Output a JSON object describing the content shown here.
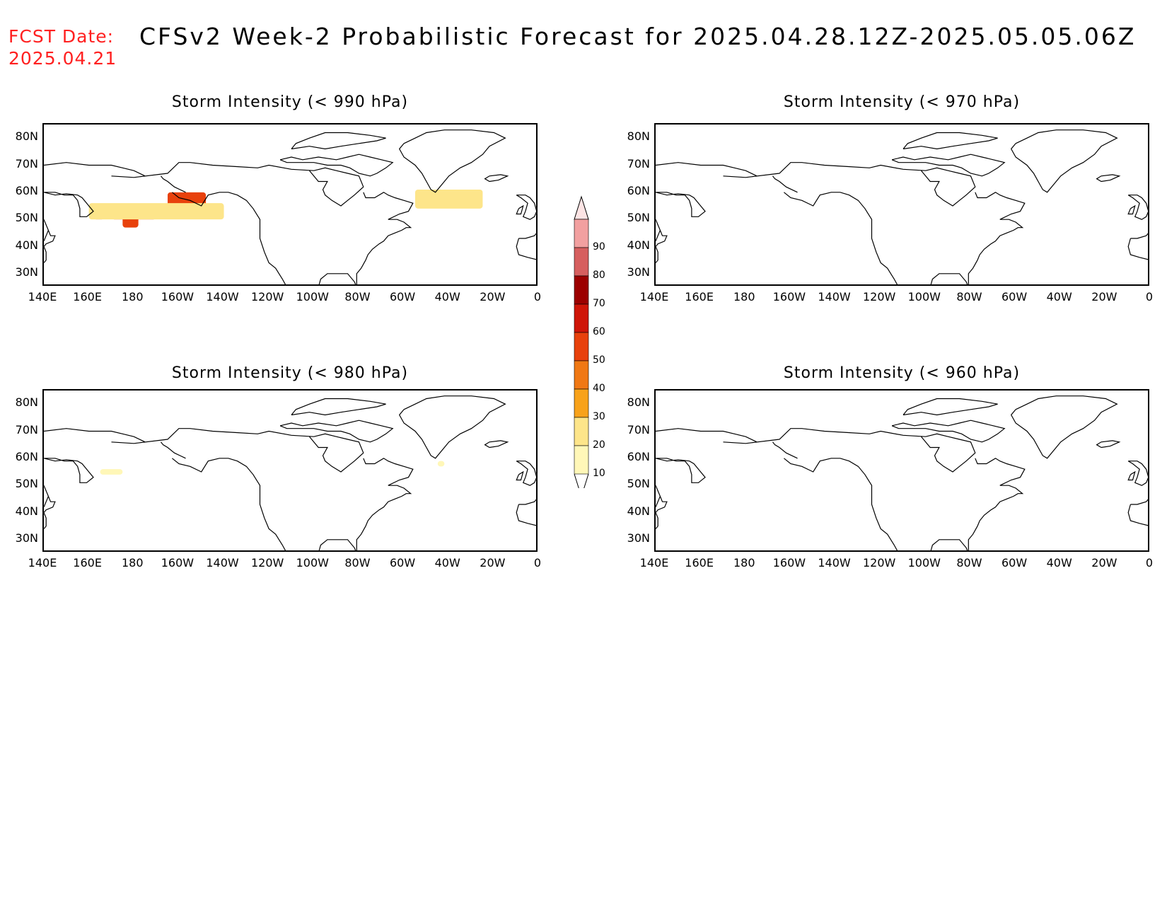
{
  "header": {
    "fcst_label": "FCST Date:",
    "fcst_date": "2025.04.21",
    "title": "CFSv2 Week-2 Probabilistic Forecast for 2025.04.28.12Z-2025.05.05.06Z",
    "label_color": "#ff2020"
  },
  "axes": {
    "lat_labels": [
      "80N",
      "70N",
      "60N",
      "50N",
      "40N",
      "30N"
    ],
    "lon_labels": [
      "140E",
      "160E",
      "180",
      "160W",
      "140W",
      "120W",
      "100W",
      "80W",
      "60W",
      "40W",
      "20W",
      "0"
    ]
  },
  "panels": [
    {
      "title": "Storm Intensity (< 990 hPa)",
      "has_probability": true
    },
    {
      "title": "Storm Intensity (< 970 hPa)",
      "has_probability": false
    },
    {
      "title": "Storm Intensity (< 980 hPa)",
      "has_probability": true
    },
    {
      "title": "Storm Intensity (< 960 hPa)",
      "has_probability": false
    }
  ],
  "colorbar": {
    "levels": [
      "10",
      "20",
      "30",
      "40",
      "50",
      "60",
      "70",
      "80",
      "90"
    ],
    "colors": [
      "#fff7b8",
      "#fde58a",
      "#f8a21a",
      "#f07814",
      "#e8410c",
      "#cf1508",
      "#9c0000",
      "#d65f5f",
      "#f2a0a0",
      "#fde4e4"
    ]
  }
}
